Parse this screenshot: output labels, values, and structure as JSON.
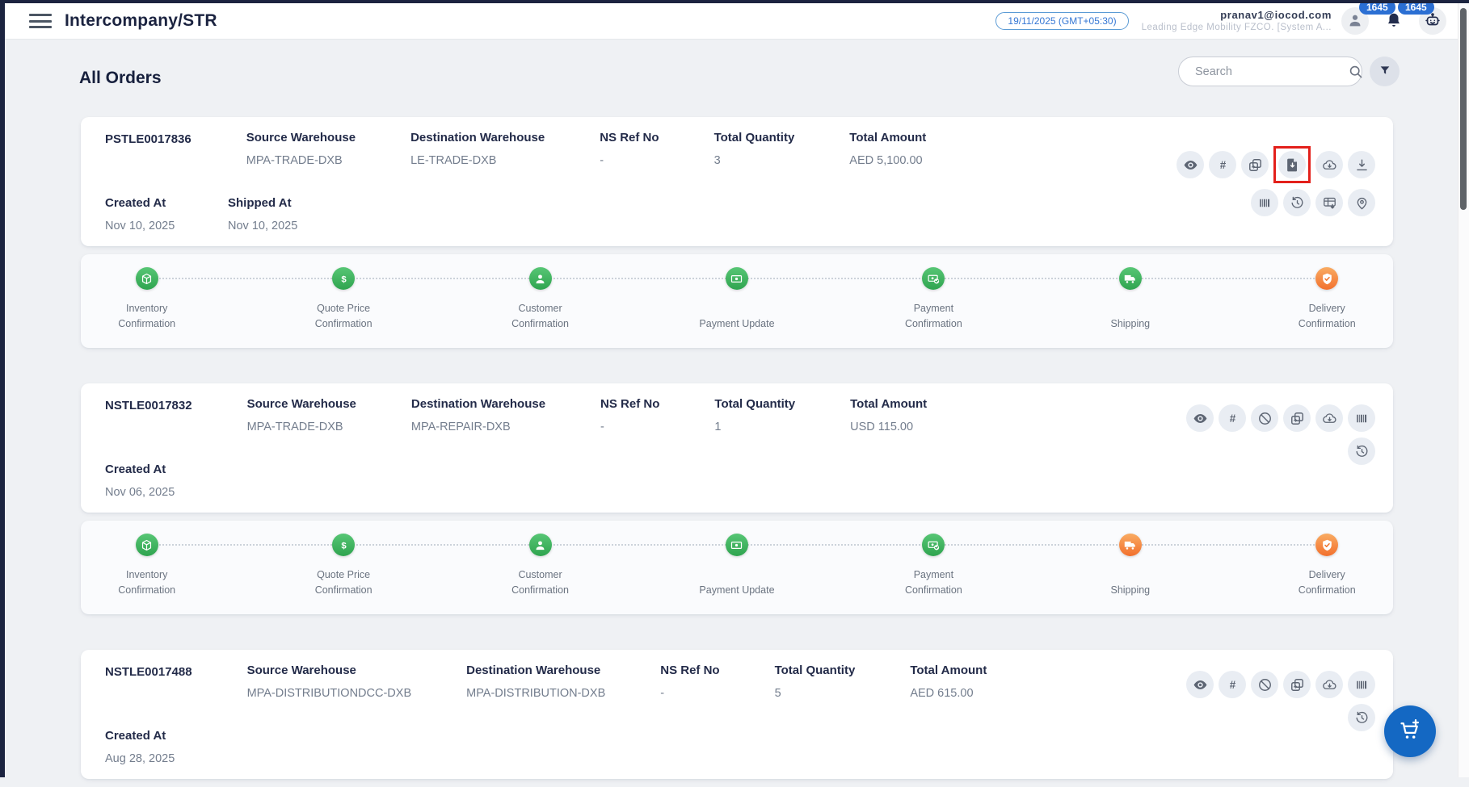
{
  "header": {
    "title": "Intercompany/STR",
    "date_badge": "19/11/2025 (GMT+05:30)",
    "user_email": "pranav1@iocod.com",
    "user_org": "Leading Edge Mobility FZCO. [System A...",
    "bell_badge": "1645",
    "assistant_badge": "1645",
    "icons": [
      "menu-icon",
      "user-icon",
      "bell-icon",
      "assistant-icon"
    ]
  },
  "page": {
    "heading": "All Orders",
    "search_placeholder": "Search",
    "toolbar_icons": [
      "search-icon",
      "filter-icon"
    ]
  },
  "field_labels": {
    "source_warehouse": "Source Warehouse",
    "destination_warehouse": "Destination Warehouse",
    "ns_ref_no": "NS Ref No",
    "total_quantity": "Total Quantity",
    "total_amount": "Total Amount",
    "created_at": "Created At",
    "shipped_at": "Shipped At"
  },
  "orders": [
    {
      "order_no": "PSTLE0017836",
      "source_warehouse": "MPA-TRADE-DXB",
      "destination_warehouse": "LE-TRADE-DXB",
      "ns_ref_no": "-",
      "total_quantity": "3",
      "total_amount": "AED 5,100.00",
      "created_at": "Nov 10, 2025",
      "shipped_at": "Nov 10, 2025",
      "actions_row1": [
        "eye-icon",
        "hash-icon",
        "duplicate-icon",
        "file-download-icon",
        "cloud-download-icon",
        "download-icon"
      ],
      "actions_row2": [
        "barcode-icon",
        "history-icon",
        "table-download-icon",
        "location-icon"
      ],
      "highlighted_action": "file-download-icon",
      "timeline": [
        {
          "label": "Inventory Confirmation",
          "icon": "inventory-icon",
          "color": "green"
        },
        {
          "label": "Quote Price Confirmation",
          "icon": "price-icon",
          "color": "green"
        },
        {
          "label": "Customer Confirmation",
          "icon": "customer-icon",
          "color": "green"
        },
        {
          "label": "Payment Update",
          "icon": "payment-update-icon",
          "color": "green"
        },
        {
          "label": "Payment Confirmation",
          "icon": "payment-confirmation-icon",
          "color": "green"
        },
        {
          "label": "Shipping",
          "icon": "shipping-icon",
          "color": "green"
        },
        {
          "label": "Delivery Confirmation",
          "icon": "delivery-icon",
          "color": "orange"
        }
      ]
    },
    {
      "order_no": "NSTLE0017832",
      "source_warehouse": "MPA-TRADE-DXB",
      "destination_warehouse": "MPA-REPAIR-DXB",
      "ns_ref_no": "-",
      "total_quantity": "1",
      "total_amount": "USD 115.00",
      "created_at": "Nov 06, 2025",
      "shipped_at": null,
      "actions_row1": [
        "eye-icon",
        "hash-icon",
        "block-icon",
        "duplicate-icon",
        "cloud-download-icon",
        "barcode-icon"
      ],
      "actions_row2": [
        "history-icon"
      ],
      "highlighted_action": null,
      "timeline": [
        {
          "label": "Inventory Confirmation",
          "icon": "inventory-icon",
          "color": "green"
        },
        {
          "label": "Quote Price Confirmation",
          "icon": "price-icon",
          "color": "green"
        },
        {
          "label": "Customer Confirmation",
          "icon": "customer-icon",
          "color": "green"
        },
        {
          "label": "Payment Update",
          "icon": "payment-update-icon",
          "color": "green"
        },
        {
          "label": "Payment Confirmation",
          "icon": "payment-confirmation-icon",
          "color": "green"
        },
        {
          "label": "Shipping",
          "icon": "shipping-icon",
          "color": "orange"
        },
        {
          "label": "Delivery Confirmation",
          "icon": "delivery-icon",
          "color": "orange"
        }
      ]
    },
    {
      "order_no": "NSTLE0017488",
      "source_warehouse": "MPA-DISTRIBUTIONDCC-DXB",
      "destination_warehouse": "MPA-DISTRIBUTION-DXB",
      "ns_ref_no": "-",
      "total_quantity": "5",
      "total_amount": "AED 615.00",
      "created_at": "Aug 28, 2025",
      "shipped_at": null,
      "actions_row1": [
        "eye-icon",
        "hash-icon",
        "block-icon",
        "duplicate-icon",
        "cloud-download-icon",
        "barcode-icon"
      ],
      "actions_row2": [
        "history-icon"
      ],
      "highlighted_action": null,
      "timeline": null
    }
  ],
  "fab": {
    "icon": "add-cart-icon"
  },
  "colors": {
    "accent_blue": "#2b6fd3",
    "fab_blue": "#1468c3",
    "step_green": "#2ea44f",
    "step_orange": "#f0752e",
    "highlight_red": "#e3201b",
    "dark_navy": "#1c2440"
  }
}
